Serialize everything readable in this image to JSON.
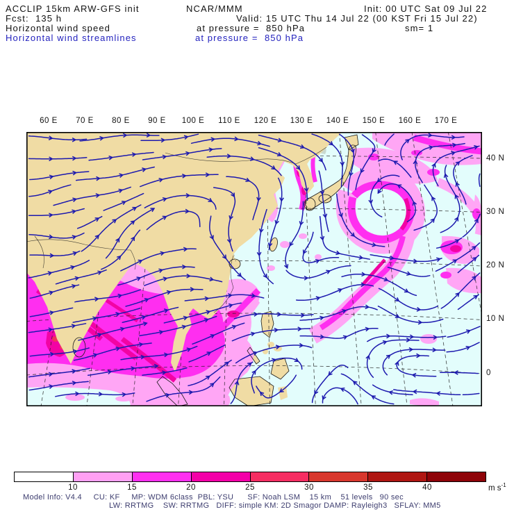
{
  "header": {
    "model": "ACCLIP 15km ARW-GFS init",
    "org": "NCAR/MMM",
    "init": "Init: 00 UTC Sat 09 Jul 22",
    "fcst": "Fcst:  135 h",
    "valid": "Valid: 15 UTC Thu 14 Jul 22 (00 KST Fri 15 Jul 22)",
    "field1": "Horizontal wind speed",
    "field1_at": "at pressure =  850 hPa",
    "sm": "sm= 1",
    "field2": "Horizontal wind streamlines",
    "field2_at": "at pressure =  850 hPa"
  },
  "axes": {
    "lon_labels": [
      "60 E",
      "70 E",
      "80 E",
      "90 E",
      "100 E",
      "110 E",
      "120 E",
      "130 E",
      "140 E",
      "150 E",
      "160 E",
      "170 E"
    ],
    "lat_labels": [
      "40 N",
      "30 N",
      "20 N",
      "10 N",
      "0"
    ]
  },
  "colorbar": {
    "ticks": [
      "10",
      "15",
      "20",
      "25",
      "30",
      "35",
      "40"
    ],
    "unit": "m s",
    "unit_sup": "-1",
    "colors": [
      "#FFFFFF",
      "#FFA0F3",
      "#FF30F0",
      "#F400A8",
      "#F62D62",
      "#D8372D",
      "#AF1612",
      "#8E0308"
    ]
  },
  "footer": {
    "line1": "Model Info: V4.4     CU: KF     MP: WDM 6class  PBL: YSU      SF: Noah LSM    15 km    51 levels   90 sec",
    "line2": "LW: RRTMG    SW: RRTMG   DIFF: simple KM: 2D Smagor DAMP: Rayleigh3   SFLAY: MM5"
  },
  "palette": {
    "ocean": "#E3FDFC",
    "land": "#F0DCA4",
    "terrain": "#8F8566",
    "snow": "#FFFFFF",
    "pink": "#FFA6F5",
    "magenta": "#FF2EF0",
    "deep": "#F203A4",
    "red": "#F1335C",
    "stream": "#1C19AE",
    "grid": "#222222",
    "coast": "#1A1A1A",
    "header_blue": "#2322BE",
    "footer_text": "#3C3C6E"
  },
  "chart_data": {
    "type": "map",
    "title": "Horizontal wind speed (shaded) and horizontal wind streamlines at 850 hPa",
    "valid_time": "15 UTC Thu 14 Jul 22",
    "init_time": "00 UTC Sat 09 Jul 22",
    "forecast_hour": 135,
    "lon_ticks_deg_e": [
      60,
      70,
      80,
      90,
      100,
      110,
      120,
      130,
      140,
      150,
      160,
      170
    ],
    "lat_ticks_deg_n": [
      40,
      30,
      20,
      10,
      0
    ],
    "shading_levels_ms": [
      10,
      15,
      20,
      25,
      30,
      35,
      40
    ],
    "shading_colors": [
      "#FFFFFF",
      "#FFA0F3",
      "#FF30F0",
      "#F400A8",
      "#F62D62",
      "#D8372D",
      "#AF1612",
      "#8E0308"
    ],
    "units": "m s-1",
    "legend_position": "bottom",
    "notable_features": [
      "Strong southwest monsoon flow 15-30 m/s over Arabian Sea, peninsular India and Bay of Bengal",
      "Cyclonic vortex near Japan (~33N, 141E) with 15-25 m/s wind ring",
      "Band of 10-20 m/s westerlies over northwest Asia and the northern Pacific",
      "Weak winds over the Tibetan Plateau and tropical western Pacific easterlies near the equator"
    ]
  }
}
